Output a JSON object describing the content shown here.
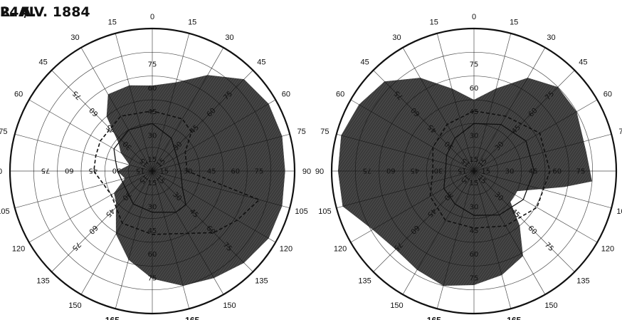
{
  "header": {
    "left_eye": "L. A.",
    "date": "24./IV. 1884",
    "right_eye": "R. A."
  },
  "colors": {
    "ink": "#111111",
    "shade": "#3a3a3a",
    "paper": "#ffffff"
  },
  "meridian_labels": [
    "0",
    "15",
    "30",
    "45",
    "60",
    "75",
    "90",
    "105",
    "120",
    "135",
    "150",
    "165",
    "180",
    "165",
    "150",
    "135",
    "120",
    "105",
    "90",
    "75",
    "60",
    "45",
    "30",
    "15"
  ],
  "eccentricity_labels": [
    "15",
    "30",
    "45",
    "60",
    "75"
  ],
  "chart_data": {
    "type": "polar",
    "max_eccentricity": 90,
    "ring_step": 15,
    "charts": [
      {
        "eye": "L. A.",
        "shaded_field": [
          [
            90,
            84
          ],
          [
            75,
            85
          ],
          [
            60,
            85
          ],
          [
            45,
            82
          ],
          [
            30,
            70
          ],
          [
            15,
            58
          ],
          [
            0,
            54
          ],
          [
            -15,
            56
          ],
          [
            -30,
            56
          ],
          [
            -40,
            45
          ],
          [
            -50,
            28
          ],
          [
            -60,
            23
          ],
          [
            -75,
            15
          ],
          [
            -90,
            22
          ],
          [
            -105,
            18
          ],
          [
            -120,
            28
          ],
          [
            -130,
            30
          ],
          [
            -150,
            46
          ],
          [
            -165,
            58
          ],
          [
            -180,
            68
          ],
          [
            165,
            75
          ],
          [
            150,
            78
          ],
          [
            135,
            82
          ],
          [
            120,
            85
          ],
          [
            105,
            85
          ]
        ],
        "dashed_field": [
          [
            90,
            22
          ],
          [
            60,
            24
          ],
          [
            45,
            35
          ],
          [
            30,
            38
          ],
          [
            0,
            38
          ],
          [
            -30,
            40
          ],
          [
            -60,
            38
          ],
          [
            -75,
            37
          ],
          [
            -90,
            37
          ],
          [
            -120,
            30
          ],
          [
            -150,
            38
          ],
          [
            -180,
            40
          ],
          [
            135,
            55
          ],
          [
            120,
            62
          ],
          [
            105,
            70
          ]
        ],
        "solid_field": [
          [
            90,
            18
          ],
          [
            60,
            18
          ],
          [
            30,
            24
          ],
          [
            0,
            30
          ],
          [
            -30,
            30
          ],
          [
            -60,
            28
          ],
          [
            -75,
            24
          ],
          [
            -90,
            22
          ],
          [
            -120,
            20
          ],
          [
            -150,
            24
          ],
          [
            -180,
            26
          ],
          [
            150,
            30
          ],
          [
            135,
            30
          ],
          [
            120,
            22
          ]
        ]
      },
      {
        "eye": "R. A.",
        "shaded_field": [
          [
            0,
            45
          ],
          [
            -15,
            54
          ],
          [
            -30,
            68
          ],
          [
            -45,
            80
          ],
          [
            -60,
            84
          ],
          [
            -75,
            87
          ],
          [
            -90,
            86
          ],
          [
            -105,
            86
          ],
          [
            -120,
            74
          ],
          [
            -135,
            70
          ],
          [
            -150,
            72
          ],
          [
            -165,
            75
          ],
          [
            -180,
            72
          ],
          [
            165,
            68
          ],
          [
            150,
            62
          ],
          [
            140,
            45
          ],
          [
            130,
            30
          ],
          [
            115,
            30
          ],
          [
            100,
            58
          ],
          [
            95,
            75
          ],
          [
            80,
            72
          ],
          [
            60,
            75
          ],
          [
            45,
            75
          ],
          [
            30,
            68
          ],
          [
            15,
            54
          ]
        ],
        "dashed_field": [
          [
            0,
            38
          ],
          [
            -30,
            34
          ],
          [
            -60,
            30
          ],
          [
            -90,
            26
          ],
          [
            -120,
            32
          ],
          [
            -150,
            36
          ],
          [
            -180,
            36
          ],
          [
            150,
            40
          ],
          [
            120,
            46
          ],
          [
            90,
            48
          ],
          [
            60,
            48
          ],
          [
            30,
            40
          ]
        ],
        "solid_field": [
          [
            0,
            30
          ],
          [
            -30,
            24
          ],
          [
            -60,
            20
          ],
          [
            -90,
            18
          ],
          [
            -120,
            22
          ],
          [
            -150,
            24
          ],
          [
            -180,
            28
          ],
          [
            150,
            32
          ],
          [
            120,
            36
          ],
          [
            90,
            38
          ],
          [
            60,
            38
          ],
          [
            30,
            34
          ]
        ]
      }
    ]
  }
}
